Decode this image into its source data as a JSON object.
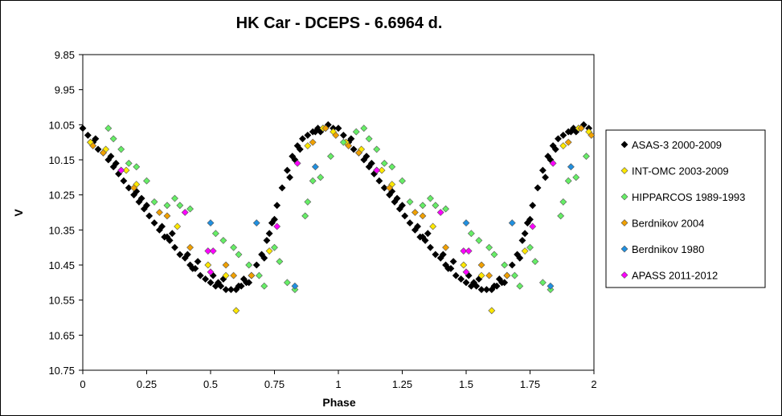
{
  "chart_data": {
    "type": "scatter",
    "title": "HK Car - DCEPS - 6.6964  d.",
    "xlabel": "Phase",
    "ylabel": "V",
    "xlim": [
      0,
      2
    ],
    "ylim": [
      10.75,
      9.85
    ],
    "y_inverted": true,
    "x_ticks": [
      "0",
      "0.25",
      "0.5",
      "0.75",
      "1",
      "1.25",
      "1.5",
      "1.75",
      "2"
    ],
    "y_ticks": [
      "9.85",
      "9.95",
      "10.05",
      "10.15",
      "10.25",
      "10.35",
      "10.45",
      "10.55",
      "10.65",
      "10.75"
    ],
    "grid": false,
    "legend_position": "right",
    "series": [
      {
        "name": "ASAS-3 2000-2009",
        "color": "#000000",
        "marker": "diamond",
        "x": [
          0.0,
          0.02,
          0.04,
          0.06,
          0.08,
          0.1,
          0.12,
          0.14,
          0.16,
          0.18,
          0.2,
          0.22,
          0.24,
          0.26,
          0.28,
          0.3,
          0.32,
          0.34,
          0.36,
          0.38,
          0.4,
          0.42,
          0.44,
          0.46,
          0.48,
          0.5,
          0.52,
          0.54,
          0.56,
          0.58,
          0.6,
          0.62,
          0.64,
          0.66,
          0.68,
          0.7,
          0.72,
          0.74,
          0.76,
          0.78,
          0.8,
          0.82,
          0.84,
          0.86,
          0.88,
          0.9,
          0.92,
          0.94,
          0.96,
          0.98,
          0.05,
          0.15,
          0.25,
          0.35,
          0.45,
          0.55,
          0.65,
          0.75,
          0.85,
          0.95,
          0.11,
          0.21,
          0.31,
          0.41,
          0.51,
          0.61,
          0.71,
          0.81,
          0.91,
          0.03,
          0.13,
          0.23,
          0.33,
          0.43,
          0.53,
          0.63,
          0.73,
          0.83,
          0.93
        ],
        "y": [
          10.06,
          10.08,
          10.1,
          10.12,
          10.13,
          10.15,
          10.17,
          10.19,
          10.21,
          10.23,
          10.25,
          10.27,
          10.29,
          10.31,
          10.33,
          10.35,
          10.37,
          10.38,
          10.4,
          10.42,
          10.43,
          10.45,
          10.46,
          10.48,
          10.49,
          10.5,
          10.51,
          10.51,
          10.52,
          10.52,
          10.52,
          10.51,
          10.5,
          10.48,
          10.45,
          10.42,
          10.38,
          10.33,
          10.28,
          10.23,
          10.18,
          10.14,
          10.11,
          10.09,
          10.08,
          10.07,
          10.06,
          10.06,
          10.05,
          10.06,
          10.09,
          10.18,
          10.28,
          10.36,
          10.44,
          10.49,
          10.5,
          10.32,
          10.12,
          10.06,
          10.14,
          10.24,
          10.34,
          10.42,
          10.48,
          10.51,
          10.43,
          10.2,
          10.07,
          10.1,
          10.16,
          10.26,
          10.37,
          10.46,
          10.5,
          10.49,
          10.36,
          10.15,
          10.07
        ]
      },
      {
        "name": "INT-OMC 2003-2009",
        "color": "#ffe800",
        "marker": "diamond",
        "x": [
          0.03,
          0.09,
          0.17,
          0.21,
          0.37,
          0.49,
          0.56,
          0.6,
          0.73,
          0.88,
          0.94,
          0.98
        ],
        "y": [
          10.1,
          10.12,
          10.18,
          10.22,
          10.34,
          10.45,
          10.48,
          10.58,
          10.41,
          10.11,
          10.06,
          10.07
        ]
      },
      {
        "name": "HIPPARCOS 1989-1993",
        "color": "#66ee66",
        "marker": "diamond",
        "x": [
          0.1,
          0.12,
          0.15,
          0.18,
          0.21,
          0.25,
          0.28,
          0.33,
          0.36,
          0.38,
          0.42,
          0.52,
          0.55,
          0.59,
          0.61,
          0.65,
          0.69,
          0.71,
          0.75,
          0.77,
          0.8,
          0.83,
          0.87,
          0.88,
          0.9,
          0.93,
          0.97,
          1.02,
          1.07
        ],
        "y": [
          10.06,
          10.09,
          10.12,
          10.16,
          10.17,
          10.21,
          10.27,
          10.28,
          10.26,
          10.28,
          10.29,
          10.36,
          10.38,
          10.4,
          10.42,
          10.45,
          10.48,
          10.51,
          10.4,
          10.44,
          10.5,
          10.52,
          10.31,
          10.27,
          10.21,
          10.2,
          10.14,
          10.1,
          10.07
        ]
      },
      {
        "name": "Berdnikov 2004",
        "color": "#f0a000",
        "marker": "diamond",
        "x": [
          0.04,
          0.08,
          0.2,
          0.3,
          0.33,
          0.42,
          0.56,
          0.59,
          0.66,
          0.9,
          0.95,
          0.99
        ],
        "y": [
          10.11,
          10.13,
          10.23,
          10.3,
          10.31,
          10.4,
          10.45,
          10.48,
          10.48,
          10.1,
          10.06,
          10.08
        ]
      },
      {
        "name": "Berdnikov 1980",
        "color": "#2090e0",
        "marker": "diamond",
        "x": [
          0.5,
          0.68,
          0.83,
          0.91
        ],
        "y": [
          10.33,
          10.33,
          10.51,
          10.17
        ]
      },
      {
        "name": "APASS 2011-2012",
        "color": "#ff00ff",
        "marker": "diamond",
        "x": [
          0.15,
          0.4,
          0.49,
          0.51,
          0.5,
          0.76,
          0.84
        ],
        "y": [
          10.18,
          10.3,
          10.41,
          10.41,
          10.47,
          10.34,
          10.16
        ]
      }
    ]
  }
}
